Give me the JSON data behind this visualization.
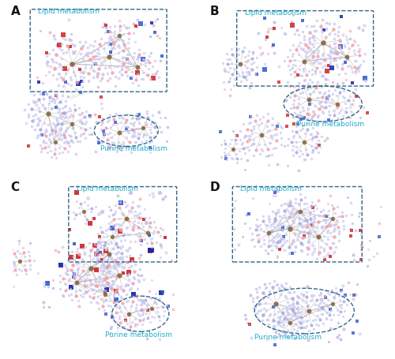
{
  "panels": [
    "A",
    "B",
    "C",
    "D"
  ],
  "bg_color": "#ffffff",
  "node_colors": {
    "pink": "#F2A0A8",
    "light_pink": "#F5C0C4",
    "blue": "#3355CC",
    "lavender": "#AAAADD",
    "light_lavender": "#C8C8EE",
    "red": "#CC2222",
    "dark_blue": "#1122AA",
    "brown": "#886644"
  },
  "label_color": "#22AACC",
  "edge_color": "#999999",
  "box_color": "#336688",
  "panel_label_color": "#111111"
}
